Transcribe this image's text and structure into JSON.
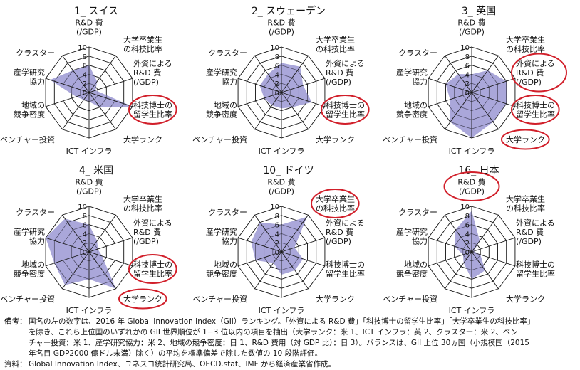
{
  "chart_data": [
    {
      "type": "radar",
      "title": "1_ スイス",
      "axes": [
        "R&D 費 (/GDP)",
        "大学卒業生の科技比率",
        "外資による R&D 費 (/GDP)",
        "科技博士の留学生比率",
        "大学ランク",
        "ICT インフラ",
        "ベンチャー投資",
        "地域の競争密度",
        "産学研究協力",
        "クラスター"
      ],
      "values": [
        6,
        3,
        1.5,
        10,
        4,
        2,
        2,
        3,
        9,
        6
      ],
      "rlim": [
        0,
        10
      ],
      "ticks": [
        "0",
        "2",
        "4",
        "6",
        "8",
        "10"
      ],
      "highlighted": [
        "科技博士の留学生比率"
      ]
    },
    {
      "type": "radar",
      "title": "2_ スウェーデン",
      "axes": [
        "R&D 費 (/GDP)",
        "大学卒業生の科技比率",
        "外資による R&D 費 (/GDP)",
        "科技博士の留学生比率",
        "大学ランク",
        "ICT インフラ",
        "ベンチャー投資",
        "地域の競争密度",
        "産学研究協力",
        "クラスター"
      ],
      "values": [
        6.5,
        7,
        5,
        7,
        4,
        3.5,
        3.5,
        4,
        5,
        5
      ],
      "rlim": [
        0,
        10
      ],
      "ticks": [
        "0",
        "2",
        "4",
        "6",
        "8",
        "10"
      ],
      "highlighted": [
        "科技博士の留学生比率"
      ]
    },
    {
      "type": "radar",
      "title": "3_ 英国",
      "axes": [
        "R&D 費 (/GDP)",
        "大学卒業生の科技比率",
        "外資による R&D 費 (/GDP)",
        "科技博士の留学生比率",
        "大学ランク",
        "ICT インフラ",
        "ベンチャー投資",
        "地域の競争密度",
        "産学研究協力",
        "クラスター"
      ],
      "values": [
        4,
        6,
        8,
        8,
        8,
        10,
        8,
        5,
        6,
        5
      ],
      "rlim": [
        0,
        10
      ],
      "ticks": [
        "0",
        "2",
        "4",
        "6",
        "8",
        "10"
      ],
      "highlighted": [
        "外資による R&D 費 (/GDP)",
        "科技博士の留学生比率",
        "大学ランク"
      ]
    },
    {
      "type": "radar",
      "title": "4_ 米国",
      "axes": [
        "R&D 費 (/GDP)",
        "大学卒業生の科技比率",
        "外資による R&D 費 (/GDP)",
        "科技博士の留学生比率",
        "大学ランク",
        "ICT インフラ",
        "ベンチャー投資",
        "地域の競争密度",
        "産学研究協力",
        "クラスター"
      ],
      "values": [
        6,
        3,
        2,
        3,
        10,
        6,
        9,
        8,
        10,
        9
      ],
      "rlim": [
        0,
        10
      ],
      "ticks": [
        "0",
        "2",
        "4",
        "6",
        "8",
        "10"
      ],
      "highlighted": [
        "科技博士の留学生比率",
        "大学ランク"
      ]
    },
    {
      "type": "radar",
      "title": "10_ ドイツ",
      "axes": [
        "R&D 費 (/GDP)",
        "大学卒業生の科技比率",
        "外資による R&D 費 (/GDP)",
        "科技博士の留学生比率",
        "大学ランク",
        "ICT インフラ",
        "ベンチャー投資",
        "地域の競争密度",
        "産学研究協力",
        "クラスター"
      ],
      "values": [
        6,
        9.5,
        3,
        5,
        5,
        5,
        3,
        6,
        7,
        8
      ],
      "rlim": [
        0,
        10
      ],
      "ticks": [
        "0",
        "2",
        "4",
        "6",
        "8",
        "10"
      ],
      "highlighted": [
        "大学卒業生の科技比率"
      ]
    },
    {
      "type": "radar",
      "title": "16_ 日本",
      "axes": [
        "R&D 費 (/GDP)",
        "大学卒業生の科技比率",
        "外資による R&D 費 (/GDP)",
        "科技博士の留学生比率",
        "大学ランク",
        "ICT インフラ",
        "ベンチャー投資",
        "地域の競争密度",
        "産学研究協力",
        "クラスター"
      ],
      "values": [
        9,
        3,
        0.5,
        2,
        5,
        6,
        3,
        2,
        4,
        6
      ],
      "rlim": [
        0,
        10
      ],
      "ticks": [
        "0",
        "2",
        "4",
        "6",
        "8",
        "10"
      ],
      "highlighted": [
        "R&D 費 (/GDP)"
      ]
    }
  ],
  "colors": {
    "fill": "#9b98d4",
    "grid": "#1a1a1a",
    "highlight": "#d11f2a",
    "text": "#111111"
  },
  "notes": {
    "biko_label": "備考：",
    "biko_lines": [
      "国名の左の数字は、2016 年 Global Innovation Index（GII）ランキング。「外資による R&D 費」「科技博士の留学生比率」「大学卒業生の科技比率」",
      "を除き、これら上位国のいずれかの GII 世界順位が 1−3 位以内の項目を抽出（大学ランク：米 1、ICT インフラ：英 2、クラスター：米 2、ベン",
      "チャー投資：米 1、産学研究協力：米 2、地域の競争密度：日 1、R&D 費用（対 GDP 比）：日 3）。バランスは、GII 上位 30ヵ国（小規模国（2015",
      "年名目 GDP2000 億ドル未満）除く）の平均を標準偏差で除した数値の 10 段階評価。"
    ],
    "shiryo_label": "資料：",
    "shiryo_text": "Global Innovation Index、ユネスコ統計研究局、OECD.stat、IMF から経済産業省作成。"
  }
}
